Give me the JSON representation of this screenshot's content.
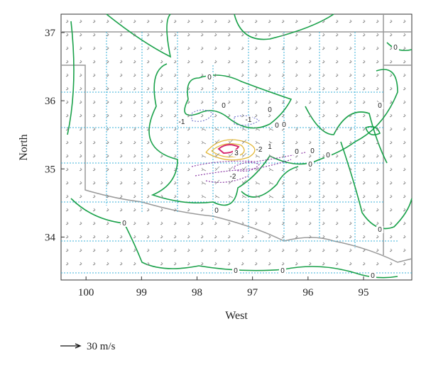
{
  "chart_data": {
    "type": "contour",
    "x_label": "West",
    "y_label": "North",
    "xlim": [
      100.45,
      94.13
    ],
    "ylim": [
      33.37,
      37.27
    ],
    "xticks": [
      100,
      99,
      98,
      97,
      96,
      95
    ],
    "yticks": [
      34,
      35,
      36,
      37
    ],
    "contour_labels": [
      0,
      0,
      -1,
      -1,
      0,
      0,
      3,
      -2,
      1,
      -2,
      0,
      0,
      0,
      0,
      0,
      0,
      0,
      0,
      0,
      0,
      0,
      0,
      0
    ],
    "reference_vector": {
      "value": 30,
      "label": "30 m/s"
    }
  }
}
